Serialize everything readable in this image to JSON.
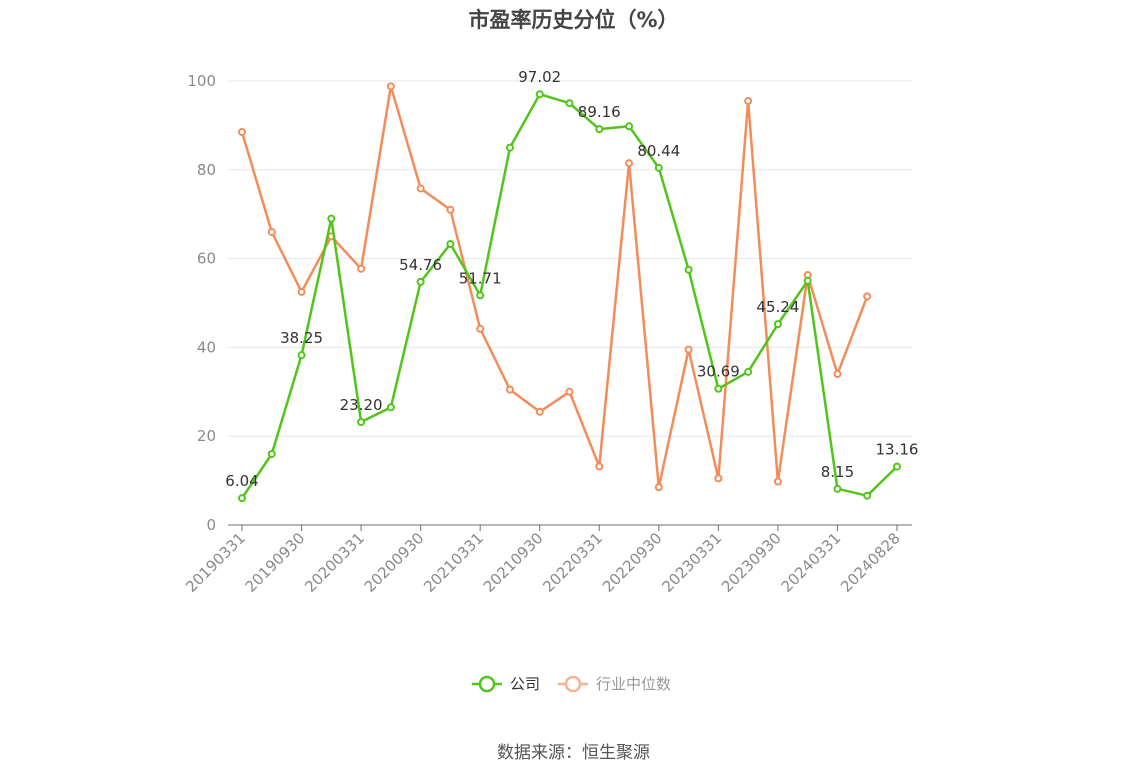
{
  "chart_data": {
    "type": "line",
    "title": "市盈率历史分位（%）",
    "xlabel": "",
    "ylabel": "",
    "ylim": [
      0,
      100
    ],
    "yticks": [
      0,
      20,
      40,
      60,
      80,
      100
    ],
    "grid": true,
    "legend_position": "bottom-center",
    "x_tick_labels": [
      "20190331",
      "20190930",
      "20200331",
      "20200930",
      "20210331",
      "20210930",
      "20220331",
      "20220930",
      "20230331",
      "20230930",
      "20240331",
      "20240828"
    ],
    "x": [
      "20190331",
      "20190630",
      "20190930",
      "20191231",
      "20200331",
      "20200630",
      "20200930",
      "20201231",
      "20210331",
      "20210630",
      "20210930",
      "20211231",
      "20220331",
      "20220630",
      "20220930",
      "20221231",
      "20230331",
      "20230630",
      "20230930",
      "20231231",
      "20240331",
      "20240630",
      "20240828"
    ],
    "series": [
      {
        "name": "公司",
        "color": "#52c41a",
        "values": [
          6.04,
          16.0,
          38.25,
          69.0,
          23.2,
          26.5,
          54.76,
          63.3,
          51.71,
          85.0,
          97.02,
          95.0,
          89.16,
          89.8,
          80.44,
          57.5,
          30.69,
          34.5,
          45.24,
          55.0,
          8.15,
          6.6,
          13.16
        ],
        "labels": [
          "6.04",
          "",
          "38.25",
          "",
          "23.20",
          "",
          "54.76",
          "",
          "51.71",
          "",
          "97.02",
          "",
          "89.16",
          "",
          "80.44",
          "",
          "30.69",
          "",
          "45.24",
          "",
          "8.15",
          "",
          "13.16"
        ]
      },
      {
        "name": "行业中位数",
        "color": "#f28c5a",
        "values": [
          88.5,
          66.0,
          52.5,
          65.0,
          57.7,
          98.8,
          75.8,
          71.0,
          44.2,
          30.5,
          25.5,
          30.0,
          13.2,
          81.5,
          8.5,
          39.5,
          10.5,
          95.5,
          9.8,
          56.3,
          34.0,
          51.5,
          null
        ]
      }
    ],
    "source": "数据来源：恒生聚源"
  }
}
